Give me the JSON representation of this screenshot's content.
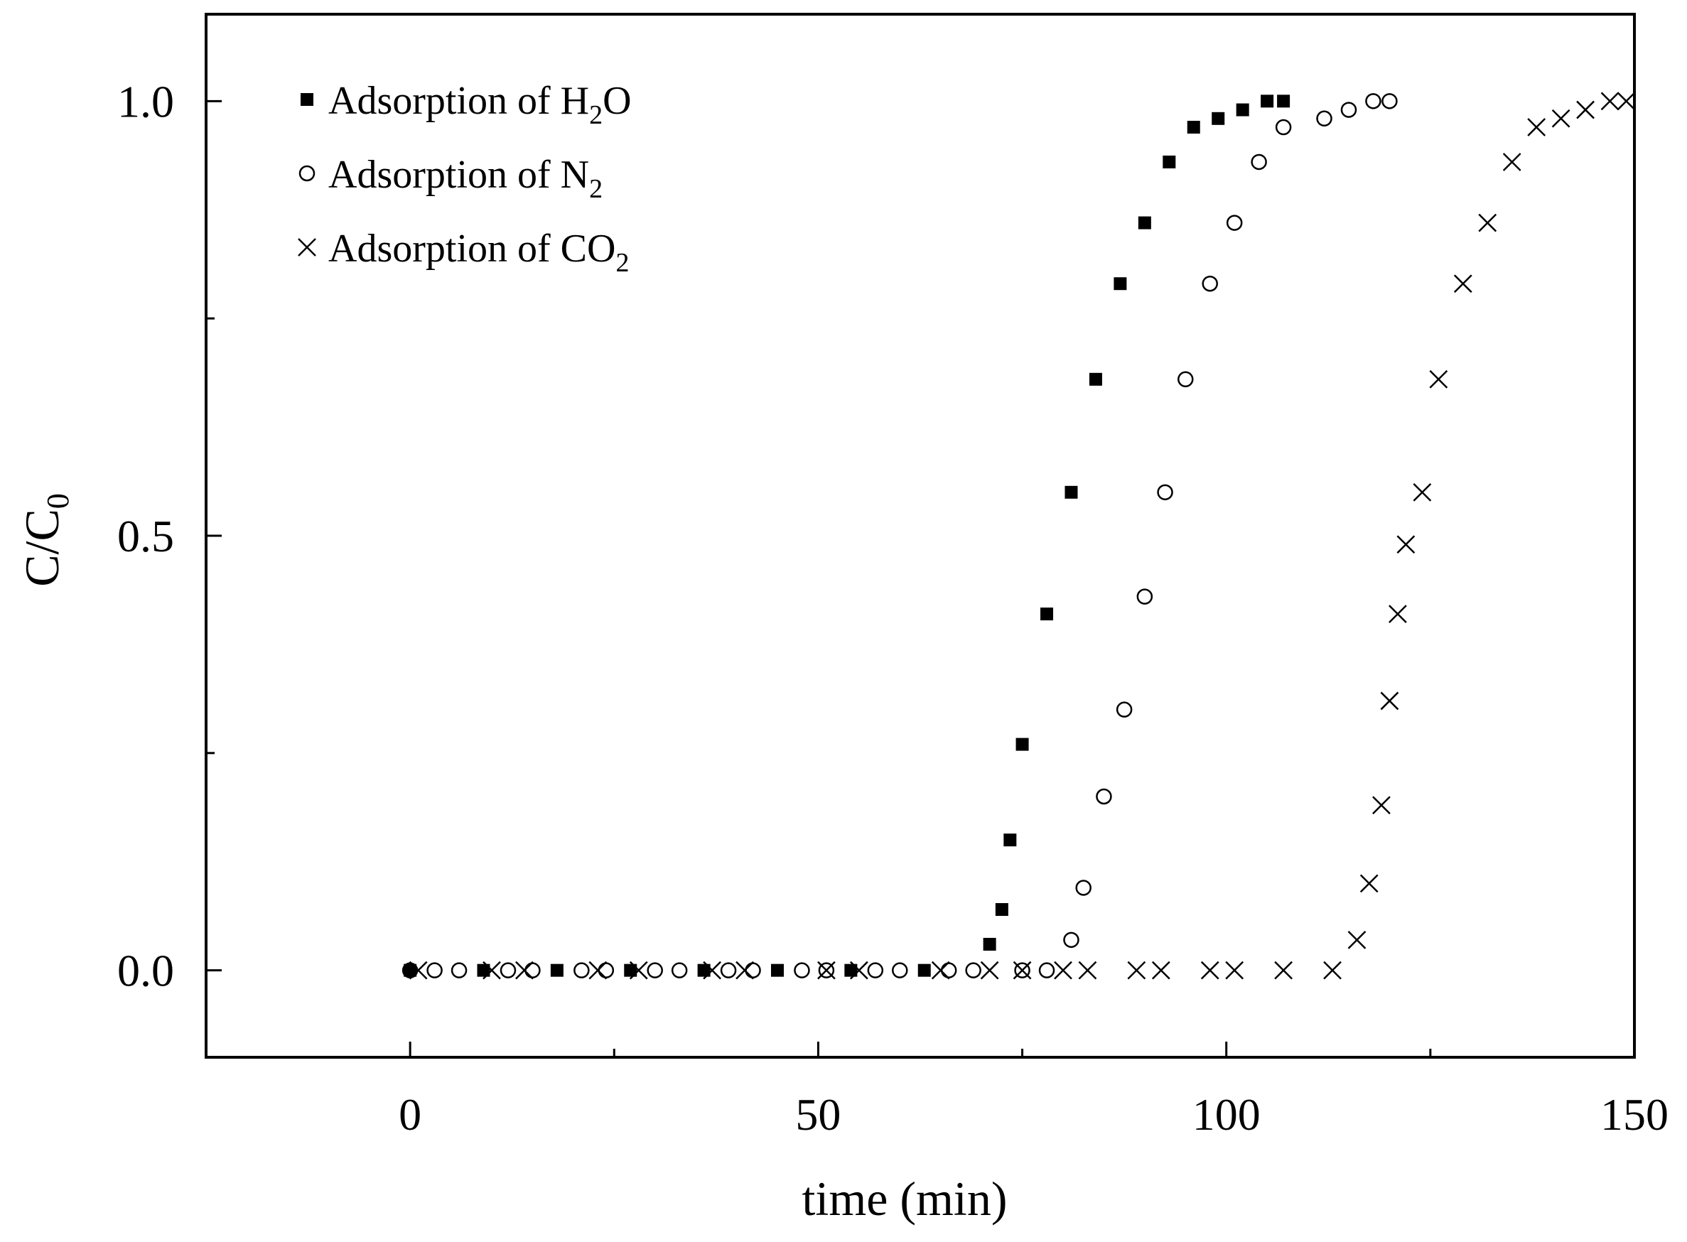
{
  "chart_data": {
    "type": "scatter",
    "title": "",
    "xlabel": "time (min)",
    "ylabel": {
      "main": "C/C",
      "sub": "0"
    },
    "xlim": [
      -25,
      150
    ],
    "ylim": [
      -0.1,
      1.1
    ],
    "xticks": [
      0,
      50,
      100,
      150
    ],
    "xtick_labels": [
      "0",
      "50",
      "100",
      "150"
    ],
    "yticks": [
      0.0,
      0.5,
      1.0
    ],
    "ytick_labels": [
      "0.0",
      "0.5",
      "1.0"
    ],
    "grid": false,
    "legend_position": "top-left",
    "series": [
      {
        "name": "Adsorption of H2O",
        "legend": {
          "prefix": "Adsorption of H",
          "sub": "2",
          "suffix": "O"
        },
        "marker": "filled-square",
        "x": [
          0,
          9,
          18,
          27,
          36,
          45,
          54,
          63,
          71,
          72.5,
          73.5,
          75,
          78,
          81,
          84,
          87,
          90,
          93,
          96,
          99,
          102,
          105,
          107
        ],
        "y": [
          0,
          0,
          0,
          0,
          0,
          0,
          0,
          0,
          0.03,
          0.07,
          0.15,
          0.26,
          0.41,
          0.55,
          0.68,
          0.79,
          0.86,
          0.93,
          0.97,
          0.98,
          0.99,
          1.0,
          1.0
        ]
      },
      {
        "name": "Adsorption of N2",
        "legend": {
          "prefix": "Adsorption of N",
          "sub": "2",
          "suffix": ""
        },
        "marker": "open-circle",
        "x": [
          0,
          3,
          6,
          12,
          15,
          21,
          24,
          30,
          33,
          39,
          42,
          48,
          51,
          57,
          60,
          66,
          69,
          75,
          78,
          81,
          82.5,
          85,
          87.5,
          90,
          92.5,
          95,
          98,
          101,
          104,
          107,
          112,
          115,
          118,
          120
        ],
        "y": [
          0,
          0,
          0,
          0,
          0,
          0,
          0,
          0,
          0,
          0,
          0,
          0,
          0,
          0,
          0,
          0,
          0,
          0,
          0,
          0.035,
          0.095,
          0.2,
          0.3,
          0.43,
          0.55,
          0.68,
          0.79,
          0.86,
          0.93,
          0.97,
          0.98,
          0.99,
          1.0,
          1.0
        ]
      },
      {
        "name": "Adsorption of CO2",
        "legend": {
          "prefix": "Adsorption of CO",
          "sub": "2",
          "suffix": ""
        },
        "marker": "cross",
        "x": [
          1,
          10,
          14,
          23,
          28,
          37,
          41,
          51,
          55,
          65,
          71,
          75,
          80,
          83,
          89,
          92,
          98,
          101,
          107,
          113,
          116,
          117.5,
          119,
          120,
          121,
          122,
          124,
          126,
          129,
          132,
          135,
          138,
          141,
          144,
          147,
          149
        ],
        "y": [
          0,
          0,
          0,
          0,
          0,
          0,
          0,
          0,
          0,
          0,
          0,
          0,
          0,
          0,
          0,
          0,
          0,
          0,
          0,
          0,
          0.035,
          0.1,
          0.19,
          0.31,
          0.41,
          0.49,
          0.55,
          0.68,
          0.79,
          0.86,
          0.93,
          0.97,
          0.98,
          0.99,
          1.0,
          1.0
        ]
      }
    ]
  }
}
